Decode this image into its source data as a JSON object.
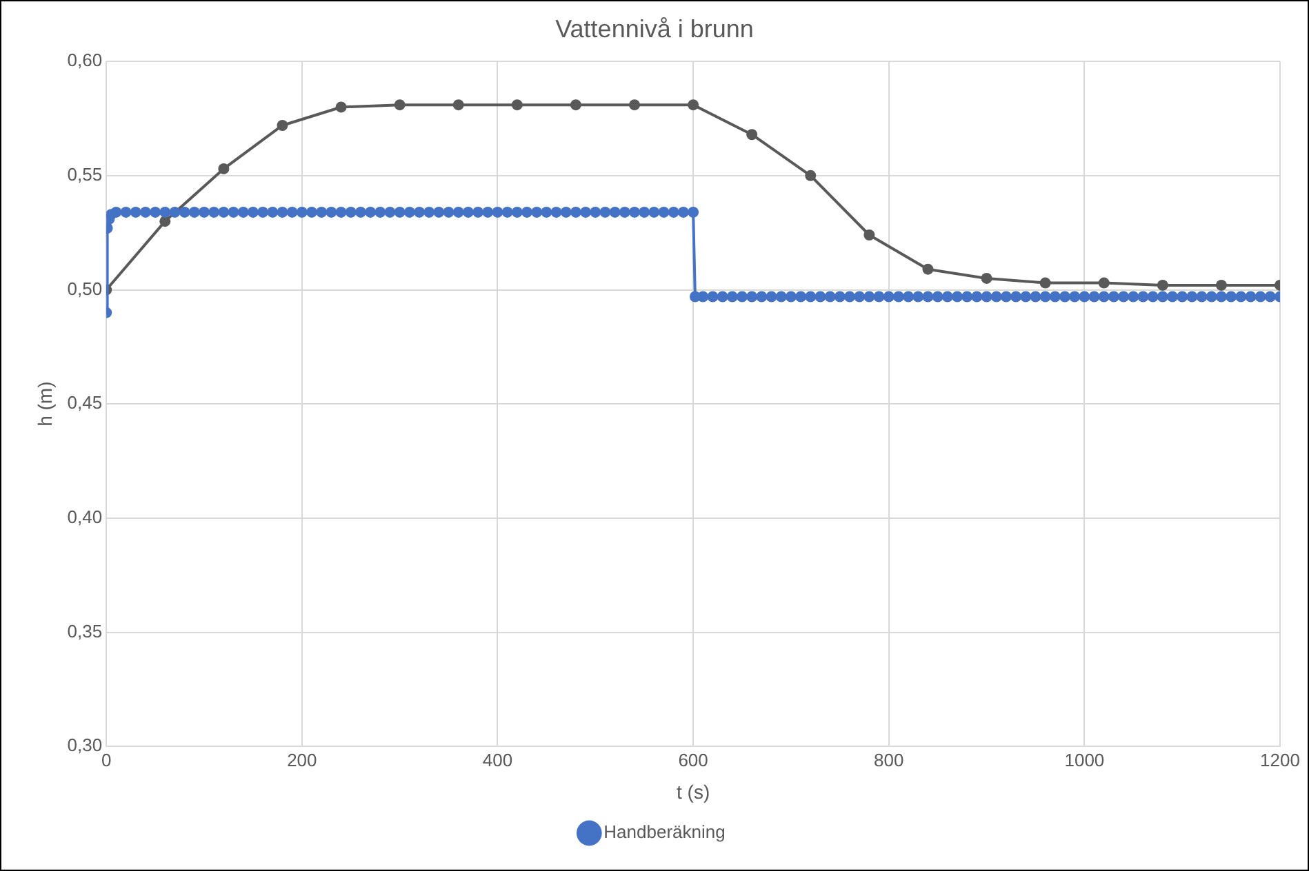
{
  "chart_data": {
    "type": "line",
    "title": "Vattennivå i brunn",
    "xlabel": "t (s)",
    "ylabel": "h (m)",
    "xlim": [
      0,
      1200
    ],
    "xticks": [
      0,
      200,
      400,
      600,
      800,
      1000,
      1200
    ],
    "ylim": [
      0.3,
      0.6
    ],
    "yticks": [
      {
        "value": 0.3,
        "label": "0,30"
      },
      {
        "value": 0.35,
        "label": "0,35"
      },
      {
        "value": 0.4,
        "label": "0,40"
      },
      {
        "value": 0.45,
        "label": "0,45"
      },
      {
        "value": 0.5,
        "label": "0,50"
      },
      {
        "value": 0.55,
        "label": "0,55"
      },
      {
        "value": 0.6,
        "label": "0,60"
      }
    ],
    "grid": true,
    "legend": "bottom",
    "marker": "circle",
    "line_style": "solid",
    "series": [
      {
        "color": "#595959",
        "x": [
          0,
          60,
          120,
          180,
          240,
          300,
          360,
          420,
          480,
          540,
          600,
          660,
          720,
          780,
          840,
          900,
          960,
          1020,
          1080,
          1140,
          1200
        ],
        "values": [
          0.5,
          0.53,
          0.553,
          0.572,
          0.58,
          0.581,
          0.581,
          0.581,
          0.581,
          0.581,
          0.581,
          0.568,
          0.55,
          0.524,
          0.509,
          0.505,
          0.503,
          0.503,
          0.502,
          0.502,
          0.502
        ]
      },
      {
        "name": "Handberäkning",
        "color": "#4472c4",
        "x": [
          0,
          1,
          3,
          5,
          10,
          20,
          30,
          40,
          50,
          60,
          70,
          80,
          90,
          100,
          110,
          120,
          130,
          140,
          150,
          160,
          170,
          180,
          190,
          200,
          210,
          220,
          230,
          240,
          250,
          260,
          270,
          280,
          290,
          300,
          310,
          320,
          330,
          340,
          350,
          360,
          370,
          380,
          390,
          400,
          410,
          420,
          430,
          440,
          450,
          460,
          470,
          480,
          490,
          500,
          510,
          520,
          530,
          540,
          550,
          560,
          570,
          580,
          590,
          600,
          602,
          610,
          620,
          630,
          640,
          650,
          660,
          670,
          680,
          690,
          700,
          710,
          720,
          730,
          740,
          750,
          760,
          770,
          780,
          790,
          800,
          810,
          820,
          830,
          840,
          850,
          860,
          870,
          880,
          890,
          900,
          910,
          920,
          930,
          940,
          950,
          960,
          970,
          980,
          990,
          1000,
          1010,
          1020,
          1030,
          1040,
          1050,
          1060,
          1070,
          1080,
          1090,
          1100,
          1110,
          1120,
          1130,
          1140,
          1150,
          1160,
          1170,
          1180,
          1190,
          1200
        ],
        "values": [
          0.49,
          0.527,
          0.531,
          0.533,
          0.534,
          0.534,
          0.534,
          0.534,
          0.534,
          0.534,
          0.534,
          0.534,
          0.534,
          0.534,
          0.534,
          0.534,
          0.534,
          0.534,
          0.534,
          0.534,
          0.534,
          0.534,
          0.534,
          0.534,
          0.534,
          0.534,
          0.534,
          0.534,
          0.534,
          0.534,
          0.534,
          0.534,
          0.534,
          0.534,
          0.534,
          0.534,
          0.534,
          0.534,
          0.534,
          0.534,
          0.534,
          0.534,
          0.534,
          0.534,
          0.534,
          0.534,
          0.534,
          0.534,
          0.534,
          0.534,
          0.534,
          0.534,
          0.534,
          0.534,
          0.534,
          0.534,
          0.534,
          0.534,
          0.534,
          0.534,
          0.534,
          0.534,
          0.534,
          0.534,
          0.497,
          0.497,
          0.497,
          0.497,
          0.497,
          0.497,
          0.497,
          0.497,
          0.497,
          0.497,
          0.497,
          0.497,
          0.497,
          0.497,
          0.497,
          0.497,
          0.497,
          0.497,
          0.497,
          0.497,
          0.497,
          0.497,
          0.497,
          0.497,
          0.497,
          0.497,
          0.497,
          0.497,
          0.497,
          0.497,
          0.497,
          0.497,
          0.497,
          0.497,
          0.497,
          0.497,
          0.497,
          0.497,
          0.497,
          0.497,
          0.497,
          0.497,
          0.497,
          0.497,
          0.497,
          0.497,
          0.497,
          0.497,
          0.497,
          0.497,
          0.497,
          0.497,
          0.497,
          0.497,
          0.497,
          0.497,
          0.497,
          0.497,
          0.497,
          0.497,
          0.497
        ]
      }
    ]
  }
}
